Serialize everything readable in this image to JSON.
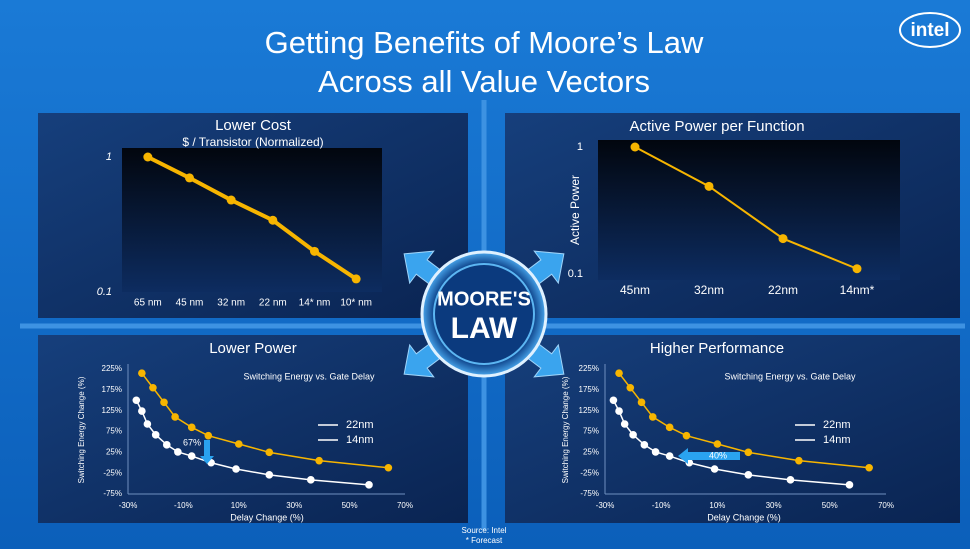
{
  "title": [
    "Getting Benefits of Moore’s Law",
    "Across all Value Vectors"
  ],
  "logo": "intel",
  "center_label": [
    "MOORE'S",
    "LAW"
  ],
  "source": "Source: Intel",
  "footnote": "* Forecast",
  "chart_data": [
    {
      "type": "line",
      "title": "Lower Cost",
      "subtitle": "$ / Transistor (Normalized)",
      "categories": [
        "65 nm",
        "45 nm",
        "32 nm",
        "22 nm",
        "14* nm",
        "10* nm"
      ],
      "values": [
        1.0,
        0.7,
        0.48,
        0.34,
        0.2,
        0.125
      ],
      "color": "#f7b500",
      "log_scale": true,
      "ylim": [
        0.1,
        1
      ],
      "yticks": [
        0.1,
        1
      ]
    },
    {
      "type": "line",
      "title": "Active Power per Function",
      "y_label": "Active Power",
      "categories": [
        "45nm",
        "32nm",
        "22nm",
        "14nm*"
      ],
      "values": [
        1.0,
        0.49,
        0.19,
        0.11
      ],
      "color": "#f7b500",
      "log_scale": true,
      "ylim": [
        0.1,
        1
      ],
      "yticks": [
        0.1,
        1
      ]
    },
    {
      "type": "scatter-line",
      "title": "Lower Power",
      "subtitle": "Switching Energy vs. Gate Delay",
      "x_label": "Delay Change (%)",
      "y_label": "Switching Energy Change (%)",
      "annotation": "67%",
      "xlim": [
        -30,
        70
      ],
      "ylim": [
        -75,
        225
      ],
      "xticks": [
        {
          "value": -30,
          "label": "-30%"
        },
        {
          "value": -10,
          "label": "-10%"
        },
        {
          "value": 10,
          "label": "10%"
        },
        {
          "value": 30,
          "label": "30%"
        },
        {
          "value": 50,
          "label": "50%"
        },
        {
          "value": 70,
          "label": "70%"
        }
      ],
      "yticks": [
        {
          "value": -75,
          "label": "-75%"
        },
        {
          "value": -25,
          "label": "-25%"
        },
        {
          "value": 25,
          "label": "25%"
        },
        {
          "value": 75,
          "label": "75%"
        },
        {
          "value": 125,
          "label": "125%"
        },
        {
          "value": 175,
          "label": "175%"
        },
        {
          "value": 225,
          "label": "225%"
        }
      ],
      "series": [
        {
          "name": "22nm",
          "color": "#f7b500",
          "x": [
            -25,
            -21,
            -17,
            -13,
            -7,
            -1,
            10,
            21,
            39,
            64
          ],
          "values": [
            215,
            180,
            145,
            110,
            85,
            65,
            45,
            25,
            5,
            -12
          ]
        },
        {
          "name": "14nm",
          "color": "#ffffff",
          "x": [
            -27,
            -25,
            -23,
            -20,
            -16,
            -12,
            -7,
            0,
            9,
            21,
            36,
            57
          ],
          "values": [
            150,
            124,
            93,
            67,
            43,
            26,
            16,
            0,
            -15,
            -29,
            -41,
            -53
          ]
        }
      ]
    },
    {
      "type": "scatter-line",
      "title": "Higher Performance",
      "subtitle": "Switching Energy vs. Gate Delay",
      "x_label": "Delay Change (%)",
      "y_label": "Switching Energy Change (%)",
      "annotation": "40%",
      "xlim": [
        -30,
        70
      ],
      "ylim": [
        -75,
        225
      ],
      "xticks": [
        {
          "value": -30,
          "label": "-30%"
        },
        {
          "value": -10,
          "label": "-10%"
        },
        {
          "value": 10,
          "label": "10%"
        },
        {
          "value": 30,
          "label": "30%"
        },
        {
          "value": 50,
          "label": "50%"
        },
        {
          "value": 70,
          "label": "70%"
        }
      ],
      "yticks": [
        {
          "value": -75,
          "label": "-75%"
        },
        {
          "value": -25,
          "label": "-25%"
        },
        {
          "value": 25,
          "label": "25%"
        },
        {
          "value": 75,
          "label": "75%"
        },
        {
          "value": 125,
          "label": "125%"
        },
        {
          "value": 175,
          "label": "175%"
        },
        {
          "value": 225,
          "label": "225%"
        }
      ],
      "series": [
        {
          "name": "22nm",
          "color": "#f7b500",
          "x": [
            -25,
            -21,
            -17,
            -13,
            -7,
            -1,
            10,
            21,
            39,
            64
          ],
          "values": [
            215,
            180,
            145,
            110,
            85,
            65,
            45,
            25,
            5,
            -12
          ]
        },
        {
          "name": "14nm",
          "color": "#ffffff",
          "x": [
            -27,
            -25,
            -23,
            -20,
            -16,
            -12,
            -7,
            0,
            9,
            21,
            36,
            57
          ],
          "values": [
            150,
            124,
            93,
            67,
            43,
            26,
            16,
            0,
            -15,
            -29,
            -41,
            -53
          ]
        }
      ]
    }
  ]
}
